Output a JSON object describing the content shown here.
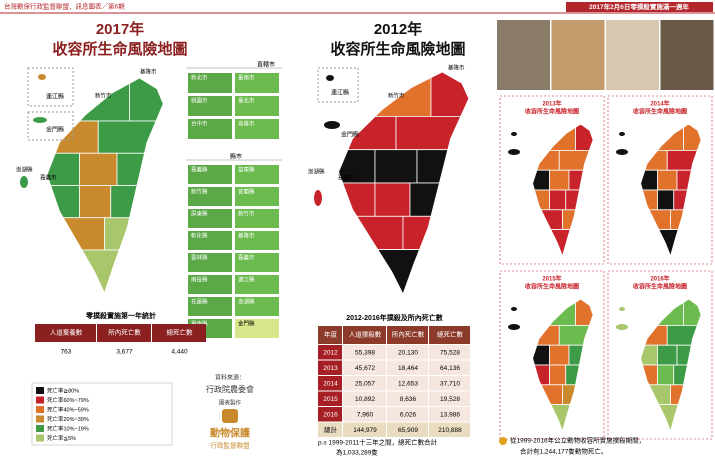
{
  "header": {
    "left": "台灣動保行政監督聯盟．訊息圖表／第6期",
    "right": "2017年2月6日零撲殺實施滿一週年"
  },
  "map2017": {
    "year": "2017年",
    "title": "收容所生命風險地圖",
    "labels": [
      "連江縣",
      "金門縣",
      "新竹市",
      "嘉義市",
      "澎湖縣",
      "基隆市"
    ]
  },
  "cities": {
    "heading": "直轄市",
    "items": [
      "新北市",
      "臺南市",
      "桃園市",
      "臺北市",
      "台中市",
      "高雄市"
    ]
  },
  "counties": {
    "heading": "縣市",
    "items": [
      "嘉義縣",
      "苗栗縣",
      "新竹縣",
      "宜蘭縣",
      "屏東縣",
      "新竹市",
      "彰化縣",
      "基隆市",
      "雲林縣",
      "嘉義市",
      "南投縣",
      "連江縣",
      "花蓮縣",
      "澎湖縣",
      "臺東縣",
      "金門縣"
    ]
  },
  "table2017": {
    "title": "零撲殺實施第一年統計",
    "headers": [
      "人道棄養數",
      "所內死亡數",
      "總死亡數"
    ],
    "rows": [
      [
        "763",
        "3,677",
        "4,440"
      ]
    ]
  },
  "legend": {
    "items": [
      {
        "label": "死亡率≧80%",
        "color": "#111111"
      },
      {
        "label": "死亡率60%~79%",
        "color": "#c8232a"
      },
      {
        "label": "死亡率40%~59%",
        "color": "#e0722b"
      },
      {
        "label": "死亡率20%~39%",
        "color": "#c88a2c"
      },
      {
        "label": "死亡率10%~19%",
        "color": "#3d9b48"
      },
      {
        "label": "死亡率≦5%",
        "color": "#a8c66a"
      }
    ]
  },
  "source": {
    "label": "資料來源：",
    "org": "行政院農委會",
    "made": "圖表製作",
    "brand": "動物保護",
    "brand_sub": "行政監督聯盟"
  },
  "map2012": {
    "year": "2012年",
    "title": "收容所生命風險地圖",
    "labels": [
      "連江縣",
      "金門縣",
      "新竹市",
      "嘉義市",
      "澎湖縣",
      "基隆市"
    ]
  },
  "table2012": {
    "title": "2012-2016年撲殺及所內死亡數",
    "headers": [
      "年度",
      "人道撲殺數",
      "所內死亡數",
      "總死亡數"
    ],
    "rows": [
      [
        "2012",
        "55,398",
        "20,130",
        "75,528"
      ],
      [
        "2013",
        "45,672",
        "18,464",
        "64,136"
      ],
      [
        "2014",
        "25,057",
        "12,653",
        "37,710"
      ],
      [
        "2015",
        "10,892",
        "8,636",
        "19,528"
      ],
      [
        "2016",
        "7,960",
        "6,026",
        "13,986"
      ],
      [
        "總計",
        "144,979",
        "65,909",
        "210,888"
      ]
    ]
  },
  "note2012": [
    "p.s 1999-2011十三年之間，總死亡數合計",
    "為1,033,289隻"
  ],
  "small_maps": [
    {
      "year": "2013年",
      "title": "收容所生命風險地圖"
    },
    {
      "year": "2014年",
      "title": "收容所生命風險地圖"
    },
    {
      "year": "2015年",
      "title": "收容所生命風險地圖"
    },
    {
      "year": "2016年",
      "title": "收容所生命風險地圖"
    }
  ],
  "summary": [
    "從1999-2016年公立動物收容所實施撲殺期間，",
    "合計有1,244,177隻動物死亡。"
  ]
}
